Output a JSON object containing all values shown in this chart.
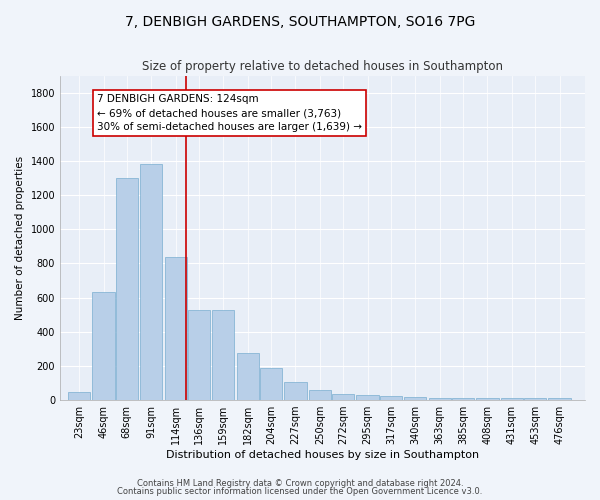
{
  "title": "7, DENBIGH GARDENS, SOUTHAMPTON, SO16 7PG",
  "subtitle": "Size of property relative to detached houses in Southampton",
  "xlabel": "Distribution of detached houses by size in Southampton",
  "ylabel": "Number of detached properties",
  "bar_color": "#b8cfe8",
  "bar_edgecolor": "#7aaed0",
  "property_line_x": 124,
  "annotation_text": "7 DENBIGH GARDENS: 124sqm\n← 69% of detached houses are smaller (3,763)\n30% of semi-detached houses are larger (1,639) →",
  "annotation_box_color": "#ffffff",
  "annotation_box_edgecolor": "#cc0000",
  "line_color": "#cc0000",
  "footnote1": "Contains HM Land Registry data © Crown copyright and database right 2024.",
  "footnote2": "Contains public sector information licensed under the Open Government Licence v3.0.",
  "bins": [
    23,
    46,
    68,
    91,
    114,
    136,
    159,
    182,
    204,
    227,
    250,
    272,
    295,
    317,
    340,
    363,
    385,
    408,
    431,
    453,
    476
  ],
  "values": [
    50,
    630,
    1300,
    1380,
    840,
    530,
    530,
    275,
    185,
    105,
    60,
    35,
    30,
    25,
    20,
    15,
    10,
    10,
    10,
    10,
    10
  ],
  "ylim": [
    0,
    1900
  ],
  "yticks": [
    0,
    200,
    400,
    600,
    800,
    1000,
    1200,
    1400,
    1600,
    1800
  ],
  "background_color": "#f0f4fa",
  "plot_bg_color": "#e8eef7",
  "title_fontsize": 10,
  "subtitle_fontsize": 8.5,
  "xlabel_fontsize": 8,
  "ylabel_fontsize": 7.5,
  "tick_fontsize": 7,
  "annotation_fontsize": 7.5,
  "footnote_fontsize": 6
}
